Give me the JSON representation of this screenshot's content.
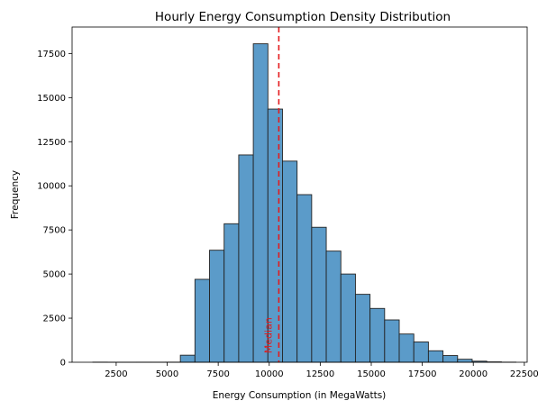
{
  "chart_data": {
    "type": "bar",
    "title": "Hourly Energy Consumption Density Distribution",
    "xlabel": "Energy Consumption (in MegaWatts)",
    "ylabel": "Frequency",
    "xlim": [
      340,
      22640
    ],
    "ylim": [
      0,
      19000
    ],
    "xticks": [
      2500,
      5000,
      7500,
      10000,
      12500,
      15000,
      17500,
      20000,
      22500
    ],
    "yticks": [
      0,
      2500,
      5000,
      7500,
      10000,
      12500,
      15000,
      17500
    ],
    "bin_width": 715,
    "bins": [
      {
        "start": 1355,
        "end": 2070,
        "count": 5
      },
      {
        "start": 2070,
        "end": 2785,
        "count": 2
      },
      {
        "start": 2785,
        "end": 3500,
        "count": 2
      },
      {
        "start": 3500,
        "end": 4215,
        "count": 3
      },
      {
        "start": 4215,
        "end": 4930,
        "count": 3
      },
      {
        "start": 4930,
        "end": 5645,
        "count": 5
      },
      {
        "start": 5645,
        "end": 6360,
        "count": 400
      },
      {
        "start": 6360,
        "end": 7075,
        "count": 4700
      },
      {
        "start": 7075,
        "end": 7790,
        "count": 6350
      },
      {
        "start": 7790,
        "end": 8505,
        "count": 7850
      },
      {
        "start": 8505,
        "end": 9220,
        "count": 11750
      },
      {
        "start": 9220,
        "end": 9935,
        "count": 18050
      },
      {
        "start": 9935,
        "end": 10650,
        "count": 14350
      },
      {
        "start": 10650,
        "end": 11365,
        "count": 11400
      },
      {
        "start": 11365,
        "end": 12080,
        "count": 9500
      },
      {
        "start": 12080,
        "end": 12795,
        "count": 7650
      },
      {
        "start": 12795,
        "end": 13510,
        "count": 6300
      },
      {
        "start": 13510,
        "end": 14225,
        "count": 5000
      },
      {
        "start": 14225,
        "end": 14940,
        "count": 3850
      },
      {
        "start": 14940,
        "end": 15655,
        "count": 3050
      },
      {
        "start": 15655,
        "end": 16370,
        "count": 2400
      },
      {
        "start": 16370,
        "end": 17085,
        "count": 1600
      },
      {
        "start": 17085,
        "end": 17800,
        "count": 1150
      },
      {
        "start": 17800,
        "end": 18515,
        "count": 650
      },
      {
        "start": 18515,
        "end": 19230,
        "count": 380
      },
      {
        "start": 19230,
        "end": 19945,
        "count": 170
      },
      {
        "start": 19945,
        "end": 20660,
        "count": 60
      },
      {
        "start": 20660,
        "end": 21375,
        "count": 20
      },
      {
        "start": 21375,
        "end": 22090,
        "count": 5
      }
    ],
    "bar_color": "#5b9bc9",
    "bar_edge_color": "#222222",
    "median": {
      "value": 10470,
      "label": "Median",
      "color": "#e41a1c"
    },
    "grid": false,
    "legend": "none"
  }
}
